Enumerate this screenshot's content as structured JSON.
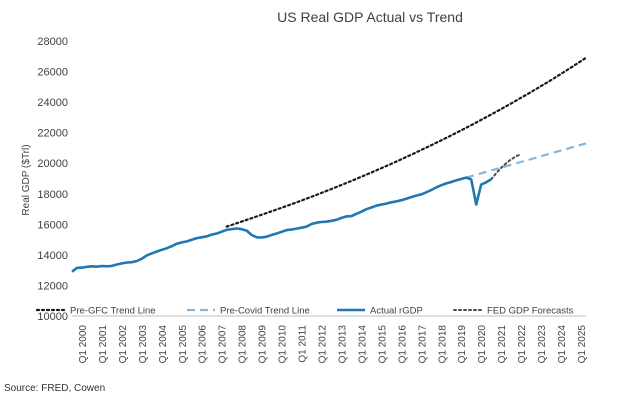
{
  "colors": {
    "actual": "#1f77b4",
    "precovid": "#84b6e0",
    "pregfc": "#1a1a1a",
    "fed": "#4a4a4a",
    "text": "#404040",
    "axis": "#bfbfbf"
  },
  "source": "Source: FRED, Cowen",
  "chart_data": {
    "type": "line",
    "title": "US Real GDP Actual vs Trend",
    "xlabel": "",
    "ylabel": "Real GDP ($Trl)",
    "ylim": [
      10000,
      28000
    ],
    "yticks": [
      10000,
      12000,
      14000,
      16000,
      18000,
      20000,
      22000,
      24000,
      26000,
      28000
    ],
    "ytick_labels": [
      "10000",
      "12000",
      "14000",
      "16000",
      "18000",
      "20000",
      "22000",
      "24000",
      "26000",
      "28000"
    ],
    "x_start_year": 2000,
    "x_end_year": 2025.75,
    "xtick_labels": [
      "Q1 2000",
      "Q1 2001",
      "Q1 2002",
      "Q1 2003",
      "Q1 2004",
      "Q1 2005",
      "Q1 2006",
      "Q1 2007",
      "Q1 2008",
      "Q1 2009",
      "Q1 2010",
      "Q1 2011",
      "Q1 2012",
      "Q1 2013",
      "Q1 2014",
      "Q1 2015",
      "Q1 2016",
      "Q1 2017",
      "Q1 2018",
      "Q1 2019",
      "Q1 2020",
      "Q1 2021",
      "Q1 2022",
      "Q1 2023",
      "Q1 2024",
      "Q1 2025"
    ],
    "legend": {
      "position": "bottom",
      "entries": [
        {
          "name": "Pre-GFC Trend Line",
          "style": "dotted"
        },
        {
          "name": "Pre-Covid Trend Line",
          "style": "dashed"
        },
        {
          "name": "Actual rGDP",
          "style": "solid"
        },
        {
          "name": "FED GDP Forecasts",
          "style": "dotted"
        }
      ]
    },
    "series": [
      {
        "name": "Actual rGDP",
        "style": "solid",
        "points": [
          [
            2000.0,
            12900
          ],
          [
            2000.25,
            13150
          ],
          [
            2000.5,
            13170
          ],
          [
            2000.75,
            13220
          ],
          [
            2001.0,
            13250
          ],
          [
            2001.25,
            13230
          ],
          [
            2001.5,
            13270
          ],
          [
            2001.75,
            13250
          ],
          [
            2002.0,
            13280
          ],
          [
            2002.25,
            13370
          ],
          [
            2002.5,
            13440
          ],
          [
            2002.75,
            13500
          ],
          [
            2003.0,
            13520
          ],
          [
            2003.25,
            13600
          ],
          [
            2003.5,
            13750
          ],
          [
            2003.75,
            13970
          ],
          [
            2004.0,
            14100
          ],
          [
            2004.25,
            14220
          ],
          [
            2004.5,
            14330
          ],
          [
            2004.75,
            14440
          ],
          [
            2005.0,
            14570
          ],
          [
            2005.25,
            14730
          ],
          [
            2005.5,
            14820
          ],
          [
            2005.75,
            14880
          ],
          [
            2006.0,
            14990
          ],
          [
            2006.25,
            15100
          ],
          [
            2006.5,
            15150
          ],
          [
            2006.75,
            15210
          ],
          [
            2007.0,
            15330
          ],
          [
            2007.25,
            15400
          ],
          [
            2007.5,
            15520
          ],
          [
            2007.75,
            15640
          ],
          [
            2008.0,
            15690
          ],
          [
            2008.25,
            15730
          ],
          [
            2008.5,
            15680
          ],
          [
            2008.75,
            15590
          ],
          [
            2009.0,
            15300
          ],
          [
            2009.25,
            15150
          ],
          [
            2009.5,
            15140
          ],
          [
            2009.75,
            15190
          ],
          [
            2010.0,
            15300
          ],
          [
            2010.25,
            15400
          ],
          [
            2010.5,
            15510
          ],
          [
            2010.75,
            15620
          ],
          [
            2011.0,
            15660
          ],
          [
            2011.25,
            15720
          ],
          [
            2011.5,
            15780
          ],
          [
            2011.75,
            15850
          ],
          [
            2012.0,
            16020
          ],
          [
            2012.25,
            16110
          ],
          [
            2012.5,
            16150
          ],
          [
            2012.75,
            16170
          ],
          [
            2013.0,
            16230
          ],
          [
            2013.25,
            16300
          ],
          [
            2013.5,
            16420
          ],
          [
            2013.75,
            16520
          ],
          [
            2014.0,
            16540
          ],
          [
            2014.25,
            16690
          ],
          [
            2014.5,
            16830
          ],
          [
            2014.75,
            16990
          ],
          [
            2015.0,
            17100
          ],
          [
            2015.25,
            17220
          ],
          [
            2015.5,
            17300
          ],
          [
            2015.75,
            17360
          ],
          [
            2016.0,
            17440
          ],
          [
            2016.25,
            17500
          ],
          [
            2016.5,
            17580
          ],
          [
            2016.75,
            17680
          ],
          [
            2017.0,
            17780
          ],
          [
            2017.25,
            17880
          ],
          [
            2017.5,
            17960
          ],
          [
            2017.75,
            18100
          ],
          [
            2018.0,
            18250
          ],
          [
            2018.25,
            18420
          ],
          [
            2018.5,
            18560
          ],
          [
            2018.75,
            18680
          ],
          [
            2019.0,
            18770
          ],
          [
            2019.25,
            18880
          ],
          [
            2019.5,
            18970
          ],
          [
            2019.75,
            19060
          ],
          [
            2020.0,
            18950
          ],
          [
            2020.25,
            17300
          ],
          [
            2020.5,
            18600
          ],
          [
            2020.75,
            18750
          ],
          [
            2021.0,
            18950
          ]
        ]
      },
      {
        "name": "Pre-Covid Trend Line",
        "style": "dashed",
        "points": [
          [
            2019.75,
            19060
          ],
          [
            2025.75,
            21300
          ]
        ]
      },
      {
        "name": "Pre-GFC Trend Line",
        "style": "dotted",
        "points": [
          [
            2007.75,
            15850
          ],
          [
            2009.0,
            16400
          ],
          [
            2010.0,
            16850
          ],
          [
            2011.0,
            17320
          ],
          [
            2012.0,
            17800
          ],
          [
            2013.0,
            18310
          ],
          [
            2014.0,
            18840
          ],
          [
            2015.0,
            19390
          ],
          [
            2016.0,
            19960
          ],
          [
            2017.0,
            20560
          ],
          [
            2018.0,
            21180
          ],
          [
            2019.0,
            21820
          ],
          [
            2020.0,
            22490
          ],
          [
            2021.0,
            23190
          ],
          [
            2022.0,
            23910
          ],
          [
            2023.0,
            24660
          ],
          [
            2024.0,
            25440
          ],
          [
            2025.0,
            26260
          ],
          [
            2025.75,
            26900
          ]
        ]
      },
      {
        "name": "FED GDP Forecasts",
        "style": "dotted",
        "points": [
          [
            2021.0,
            18950
          ],
          [
            2021.25,
            19350
          ],
          [
            2021.5,
            19700
          ],
          [
            2021.75,
            20000
          ],
          [
            2022.0,
            20250
          ],
          [
            2022.25,
            20450
          ],
          [
            2022.5,
            20600
          ]
        ]
      }
    ]
  }
}
